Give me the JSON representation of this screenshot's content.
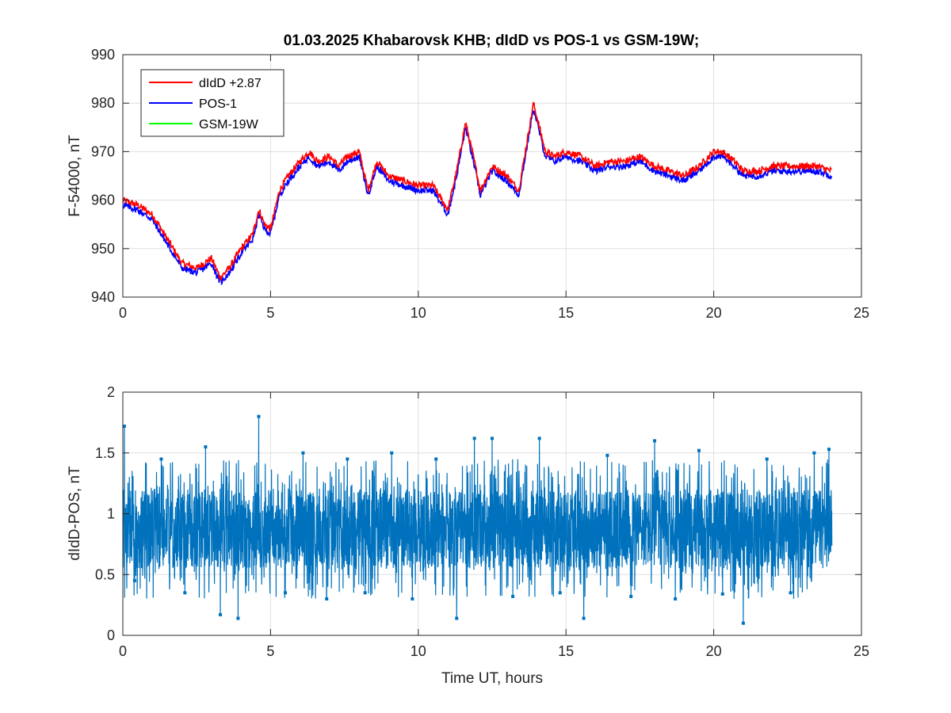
{
  "chart_data": [
    {
      "type": "line",
      "title": "01.03.2025  Khabarovsk KHB; dIdD vs POS-1 vs GSM-19W;",
      "xlabel": "",
      "ylabel": "F-54000, nT",
      "xlim": [
        0,
        25
      ],
      "ylim": [
        940,
        990
      ],
      "xticks": [
        0,
        5,
        10,
        15,
        20,
        25
      ],
      "yticks": [
        940,
        950,
        960,
        970,
        980,
        990
      ],
      "grid": true,
      "legend_position": "top-left",
      "series": [
        {
          "name": "dIdD +2.87",
          "color": "#ff0000",
          "x": [
            0,
            0.5,
            1,
            1.5,
            2,
            2.5,
            3,
            3.3,
            3.6,
            4,
            4.4,
            4.6,
            4.8,
            5,
            5.3,
            5.6,
            6,
            6.3,
            6.6,
            7,
            7.3,
            7.6,
            8,
            8.3,
            8.6,
            9,
            9.5,
            10,
            10.5,
            11,
            11.3,
            11.6,
            11.9,
            12.1,
            12.5,
            13,
            13.4,
            13.9,
            14.3,
            14.6,
            15,
            15.5,
            16,
            16.5,
            17,
            17.5,
            18,
            18.5,
            19,
            19.5,
            20,
            20.3,
            20.7,
            21,
            21.5,
            22,
            22.5,
            23,
            23.5,
            24
          ],
          "y": [
            960,
            959,
            957,
            952,
            947,
            946,
            948,
            944,
            946,
            950,
            953,
            958,
            955,
            954,
            962,
            965,
            968,
            970,
            968,
            969,
            967,
            969,
            970,
            962,
            968,
            965,
            964,
            963,
            963,
            958,
            966,
            976,
            968,
            962,
            967,
            965,
            962,
            980,
            970,
            969,
            970,
            969,
            967,
            968,
            968,
            969,
            967,
            966,
            965,
            967,
            970,
            970,
            968,
            966,
            966,
            967,
            967,
            967,
            967,
            966
          ]
        },
        {
          "name": "POS-1",
          "color": "#0000ff",
          "x": [
            0,
            0.5,
            1,
            1.5,
            2,
            2.5,
            3,
            3.3,
            3.6,
            4,
            4.4,
            4.6,
            4.8,
            5,
            5.3,
            5.6,
            6,
            6.3,
            6.6,
            7,
            7.3,
            7.6,
            8,
            8.3,
            8.6,
            9,
            9.5,
            10,
            10.5,
            11,
            11.3,
            11.6,
            11.9,
            12.1,
            12.5,
            13,
            13.4,
            13.9,
            14.3,
            14.6,
            15,
            15.5,
            16,
            16.5,
            17,
            17.5,
            18,
            18.5,
            19,
            19.5,
            20,
            20.3,
            20.7,
            21,
            21.5,
            22,
            22.5,
            23,
            23.5,
            24
          ],
          "y": [
            959,
            958,
            956,
            951,
            946,
            945,
            947,
            943,
            945,
            949,
            952,
            957,
            954,
            953,
            961,
            964,
            967,
            969,
            967,
            968,
            966,
            968,
            969,
            961,
            967,
            964,
            963,
            962,
            962,
            957,
            965,
            975,
            967,
            961,
            966,
            964,
            961,
            979,
            969,
            968,
            969,
            968,
            966,
            967,
            967,
            968,
            966,
            965,
            964,
            966,
            969,
            969,
            967,
            965,
            965,
            966,
            966,
            966,
            966,
            965
          ]
        },
        {
          "name": "GSM-19W",
          "color": "#00ff00",
          "x": [],
          "y": []
        }
      ]
    },
    {
      "type": "line",
      "title": "",
      "xlabel": "Time UT, hours",
      "ylabel": "dIdD-POS, nT",
      "xlim": [
        0,
        25
      ],
      "ylim": [
        0,
        2
      ],
      "xticks": [
        0,
        5,
        10,
        15,
        20,
        25
      ],
      "yticks": [
        0,
        0.5,
        1,
        1.5,
        2
      ],
      "grid": true,
      "series": [
        {
          "color": "#0072bd",
          "x_range": [
            0,
            24
          ],
          "mean": 0.87,
          "band": [
            0.55,
            1.2
          ],
          "spikes_x": [
            0.05,
            0.4,
            1.3,
            2.1,
            2.8,
            3.3,
            3.9,
            4.6,
            5.5,
            6.1,
            6.9,
            7.6,
            8.2,
            9.1,
            9.8,
            10.6,
            11.3,
            11.9,
            12.5,
            13.2,
            14.1,
            14.8,
            15.6,
            16.4,
            17.2,
            18.0,
            18.7,
            19.5,
            20.3,
            21.0,
            21.8,
            22.6,
            23.4,
            23.9
          ],
          "spikes_y": [
            1.72,
            0.45,
            1.45,
            0.35,
            1.55,
            0.17,
            0.14,
            1.8,
            0.35,
            1.5,
            0.3,
            1.45,
            0.35,
            1.5,
            0.3,
            1.45,
            0.14,
            1.62,
            1.62,
            0.32,
            1.62,
            0.35,
            0.14,
            1.48,
            0.32,
            1.6,
            0.3,
            1.52,
            0.34,
            0.1,
            1.45,
            0.35,
            1.5,
            1.53
          ]
        }
      ]
    }
  ]
}
